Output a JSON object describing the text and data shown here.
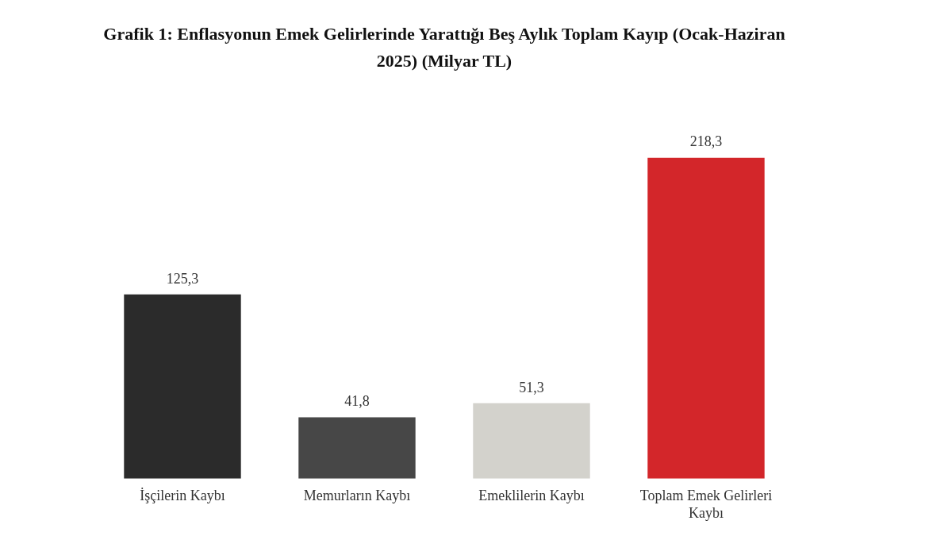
{
  "chart_data": {
    "type": "bar",
    "title": "Grafik 1: Enflasyonun Emek Gelirlerinde Yarattığı Beş Aylık Toplam Kayıp (Ocak-Haziran 2025) (Milyar TL)",
    "categories": [
      "İşçilerin Kaybı",
      "Memurların Kaybı",
      "Emeklilerin Kaybı",
      "Toplam Emek Gelirleri Kaybı"
    ],
    "values": [
      125.3,
      41.8,
      51.3,
      218.3
    ],
    "colors": [
      "#2b2b2b",
      "#474747",
      "#d3d2cc",
      "#d3262a"
    ],
    "value_labels": [
      "125,3",
      "41,8",
      "51,3",
      "218,3"
    ],
    "grid": false,
    "legend": false
  }
}
